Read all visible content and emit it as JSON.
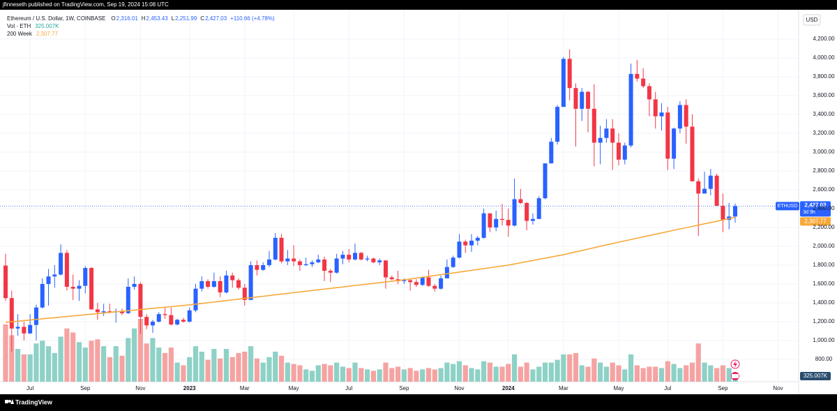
{
  "header": {
    "publisher": "jfinneseth published on TradingView.com, Sep 19, 2024 15:08 UTC",
    "brand": "TradingView"
  },
  "chart_data": {
    "type": "candlestick",
    "title": "Ethereum / U.S. Dollar, 1W, COINBASE",
    "ohlc_legend": [
      {
        "key": "O",
        "value": "2,316.01"
      },
      {
        "key": "H",
        "value": "2,453.43"
      },
      {
        "key": "L",
        "value": "2,251.99"
      },
      {
        "key": "C",
        "value": "2,427.03"
      }
    ],
    "change": "+110.66 (+4.78%)",
    "currency": "USD",
    "price_tag": {
      "symbol": "ETHUSD",
      "label": "2,427.03",
      "countdown": "3d 9h"
    },
    "up_color": "#2962ff",
    "down_color": "#f23645",
    "volume_up_color": "#8ed1c6",
    "volume_down_color": "#f5a3a2",
    "grid": true,
    "ylim": [
      444,
      4511
    ],
    "yticks": [
      {
        "value": 800,
        "label": "800.00"
      },
      {
        "value": 1000,
        "label": "1,000.00"
      },
      {
        "value": 1200,
        "label": "1,200.00"
      },
      {
        "value": 1400,
        "label": "1,400.00"
      },
      {
        "value": 1600,
        "label": "1,600.00"
      },
      {
        "value": 1800,
        "label": "1,800.00"
      },
      {
        "value": 2000,
        "label": "2,000.00"
      },
      {
        "value": 2200,
        "label": "2,200.00"
      },
      {
        "value": 2400,
        "label": "2,400.00"
      },
      {
        "value": 2600,
        "label": "2,600.00"
      },
      {
        "value": 2800,
        "label": "2,800.00"
      },
      {
        "value": 3000,
        "label": "3,000.00"
      },
      {
        "value": 3200,
        "label": "3,200.00"
      },
      {
        "value": 3400,
        "label": "3,400.00"
      },
      {
        "value": 3600,
        "label": "3,600.00"
      },
      {
        "value": 3800,
        "label": "3,800.00"
      },
      {
        "value": 4000,
        "label": "4,000.00"
      },
      {
        "value": 4200,
        "label": "4,200.00"
      }
    ],
    "categories": [
      null,
      null,
      null,
      null,
      "Jul",
      null,
      null,
      null,
      null,
      null,
      null,
      null,
      null,
      "Sep",
      null,
      null,
      null,
      null,
      null,
      null,
      null,
      null,
      "Nov",
      null,
      null,
      null,
      null,
      null,
      null,
      null,
      "2023",
      null,
      null,
      null,
      null,
      null,
      null,
      null,
      null,
      "Mar",
      null,
      null,
      null,
      null,
      null,
      null,
      null,
      "May",
      null,
      null,
      null,
      null,
      null,
      null,
      null,
      null,
      "Jul",
      null,
      null,
      null,
      null,
      null,
      null,
      null,
      null,
      "Sep",
      null,
      null,
      null,
      null,
      null,
      null,
      null,
      null,
      "Nov",
      null,
      null,
      null,
      null,
      null,
      null,
      null,
      "2024",
      null,
      null,
      null,
      null,
      null,
      null,
      null,
      null,
      "Mar",
      null,
      null,
      null,
      null,
      null,
      null,
      null,
      null,
      "May",
      null,
      null,
      null,
      null,
      null,
      null,
      null,
      "Jul",
      null,
      null,
      null,
      null,
      null,
      null,
      null,
      null,
      "Sep",
      null,
      null,
      null,
      null,
      null,
      null,
      null,
      null,
      "Nov",
      null,
      null
    ],
    "open": [
      1795,
      1450,
      1127,
      1145,
      1075,
      1165,
      1350,
      1600,
      1680,
      1700,
      1930,
      1570,
      1550,
      1580,
      1770,
      1330,
      1300,
      1310,
      1300,
      1310,
      1290,
      1570,
      1600,
      1250,
      1160,
      1200,
      1280,
      1270,
      1170,
      1220,
      1200,
      1320,
      1550,
      1630,
      1570,
      1630,
      1510,
      1690,
      1640,
      1560,
      1430,
      1800,
      1750,
      1800,
      1860,
      2090,
      1840,
      1870,
      1840,
      1800,
      1810,
      1830,
      1860,
      1740,
      1720,
      1870,
      1910,
      1860,
      1930,
      1860,
      1870,
      1830,
      1850,
      1670,
      1650,
      1630,
      1640,
      1620,
      1590,
      1670,
      1580,
      1550,
      1660,
      1780,
      1880,
      2050,
      2010,
      2060,
      2090,
      2350,
      2200,
      2290,
      2280,
      2220,
      2500,
      2460,
      2270,
      2290,
      2510,
      2880,
      3110,
      3480,
      3990,
      3680,
      3460,
      3640,
      3460,
      3100,
      3150,
      3250,
      3100,
      2920,
      3070,
      3830,
      3780,
      3700,
      3560,
      3380,
      3420,
      2930,
      3250,
      3500,
      3270,
      2690,
      2560,
      2610,
      2750,
      2430,
      2280,
      2316.01,
      null,
      null,
      null,
      null,
      null,
      null,
      null,
      null,
      null
    ],
    "high": [
      1920,
      1530,
      1280,
      1200,
      1280,
      1380,
      1660,
      1760,
      1800,
      2020,
      1960,
      1700,
      1640,
      1790,
      1780,
      1400,
      1390,
      1390,
      1340,
      1340,
      1660,
      1680,
      1620,
      1280,
      1220,
      1300,
      1350,
      1350,
      1230,
      1240,
      1350,
      1600,
      1680,
      1650,
      1720,
      1680,
      1740,
      1720,
      1660,
      1600,
      1840,
      1850,
      1830,
      1950,
      2140,
      2130,
      1960,
      2010,
      1860,
      1880,
      1850,
      1910,
      1890,
      1760,
      1920,
      1950,
      1970,
      2030,
      1940,
      1900,
      1880,
      1870,
      1850,
      1690,
      1740,
      1660,
      1660,
      1650,
      1680,
      1750,
      1600,
      1690,
      1860,
      1900,
      2130,
      2070,
      2130,
      2110,
      2400,
      2350,
      2380,
      2450,
      2400,
      2720,
      2610,
      2470,
      2350,
      2530,
      2880,
      3150,
      3500,
      4010,
      4090,
      3730,
      3680,
      3650,
      3720,
      3280,
      3350,
      3350,
      3200,
      3100,
      3940,
      3980,
      3890,
      3730,
      3640,
      3520,
      3480,
      3260,
      3540,
      3560,
      3400,
      2720,
      2790,
      2820,
      2770,
      2560,
      2460,
      2453.43,
      null,
      null,
      null,
      null,
      null,
      null,
      null,
      null,
      null
    ],
    "low": [
      1420,
      880,
      1050,
      1000,
      1070,
      1000,
      1340,
      1370,
      1560,
      1690,
      1530,
      1430,
      1420,
      1500,
      1330,
      1220,
      1260,
      1290,
      1190,
      1270,
      1280,
      1540,
      1070,
      1120,
      1080,
      1190,
      1230,
      1160,
      1160,
      1190,
      1190,
      1300,
      1520,
      1550,
      1560,
      1460,
      1500,
      1560,
      1540,
      1370,
      1430,
      1690,
      1740,
      1780,
      1850,
      1820,
      1800,
      1790,
      1740,
      1790,
      1780,
      1820,
      1630,
      1620,
      1710,
      1810,
      1830,
      1850,
      1850,
      1840,
      1820,
      1800,
      1550,
      1640,
      1600,
      1600,
      1530,
      1570,
      1580,
      1570,
      1520,
      1540,
      1660,
      1770,
      1870,
      1930,
      1940,
      2010,
      2080,
      2150,
      2160,
      2220,
      2100,
      2210,
      2450,
      2170,
      2230,
      2290,
      2500,
      2880,
      3080,
      3480,
      3550,
      3060,
      3330,
      3210,
      2850,
      2870,
      3100,
      2810,
      2860,
      2870,
      3050,
      3750,
      3680,
      3380,
      3250,
      3230,
      2810,
      2820,
      3200,
      3090,
      2690,
      2110,
      2560,
      2540,
      2430,
      2150,
      2180,
      2251.99,
      null,
      null,
      null,
      null,
      null,
      null,
      null,
      null,
      null
    ],
    "close": [
      1450,
      1127,
      1145,
      1075,
      1165,
      1350,
      1600,
      1680,
      1700,
      1930,
      1570,
      1550,
      1580,
      1770,
      1330,
      1300,
      1310,
      1300,
      1310,
      1290,
      1570,
      1600,
      1250,
      1160,
      1200,
      1280,
      1270,
      1170,
      1220,
      1200,
      1320,
      1550,
      1630,
      1570,
      1630,
      1510,
      1690,
      1640,
      1560,
      1430,
      1800,
      1750,
      1800,
      1860,
      2090,
      1840,
      1870,
      1840,
      1800,
      1810,
      1830,
      1860,
      1740,
      1720,
      1870,
      1910,
      1860,
      1930,
      1860,
      1870,
      1830,
      1850,
      1670,
      1650,
      1630,
      1640,
      1620,
      1590,
      1670,
      1580,
      1550,
      1660,
      1780,
      1880,
      2050,
      2010,
      2060,
      2090,
      2350,
      2200,
      2290,
      2280,
      2220,
      2500,
      2460,
      2270,
      2290,
      2510,
      2880,
      3110,
      3480,
      3990,
      3680,
      3460,
      3640,
      3460,
      3100,
      3150,
      3250,
      3100,
      2920,
      3070,
      3830,
      3780,
      3700,
      3560,
      3380,
      3420,
      2930,
      3250,
      3500,
      3270,
      2690,
      2560,
      2610,
      2750,
      2430,
      2280,
      2316,
      2427.03,
      null,
      null,
      null,
      null,
      null,
      null,
      null,
      null,
      null
    ],
    "volume": {
      "name": "Vol · ETH",
      "value_label": "325.007K",
      "values": [
        2100,
        1700,
        1200,
        1000,
        1000,
        1400,
        1500,
        1300,
        1050,
        1650,
        1950,
        1800,
        1450,
        1250,
        1500,
        1550,
        1300,
        900,
        1300,
        950,
        1600,
        1950,
        2300,
        1400,
        1600,
        1250,
        1050,
        1250,
        700,
        600,
        900,
        1300,
        1100,
        800,
        1200,
        850,
        1200,
        900,
        1050,
        1100,
        1300,
        850,
        700,
        900,
        1100,
        950,
        700,
        650,
        600,
        450,
        400,
        600,
        650,
        600,
        700,
        550,
        500,
        700,
        500,
        450,
        400,
        450,
        700,
        500,
        550,
        450,
        500,
        400,
        450,
        500,
        450,
        500,
        700,
        650,
        750,
        600,
        500,
        450,
        750,
        700,
        550,
        550,
        650,
        1000,
        550,
        700,
        450,
        550,
        700,
        700,
        800,
        1000,
        1000,
        1050,
        600,
        550,
        850,
        700,
        550,
        700,
        600,
        450,
        1000,
        600,
        500,
        550,
        550,
        500,
        750,
        650,
        500,
        600,
        700,
        1400,
        700,
        600,
        500,
        600,
        500,
        325.007,
        null,
        null,
        null,
        null,
        null,
        null,
        null,
        null,
        null
      ]
    },
    "ma": {
      "name": "200 Week",
      "color": "#f7a93b",
      "value_label": "2,307.77",
      "values": [
        1193,
        1199,
        1205,
        1211,
        1218,
        1224,
        1230,
        1236,
        1242,
        1248,
        1255,
        1261,
        1267,
        1273,
        1279,
        1285,
        1292,
        1298,
        1304,
        1310,
        1316,
        1322,
        1329,
        1335,
        1341,
        1347,
        1353,
        1359,
        1366,
        1372,
        1378,
        1386,
        1393,
        1401,
        1408,
        1416,
        1424,
        1431,
        1439,
        1447,
        1454,
        1462,
        1469,
        1477,
        1485,
        1492,
        1500,
        1508,
        1515,
        1523,
        1530,
        1538,
        1546,
        1553,
        1561,
        1568,
        1576,
        1584,
        1591,
        1599,
        1606,
        1614,
        1622,
        1629,
        1637,
        1644,
        1653,
        1662,
        1671,
        1680,
        1690,
        1699,
        1708,
        1717,
        1726,
        1735,
        1744,
        1754,
        1763,
        1772,
        1782,
        1791,
        1800,
        1812,
        1825,
        1837,
        1849,
        1862,
        1874,
        1886,
        1899,
        1911,
        1926,
        1941,
        1955,
        1970,
        1985,
        2000,
        2015,
        2029,
        2044,
        2058,
        2072,
        2086,
        2100,
        2114,
        2128,
        2142,
        2156,
        2170,
        2184,
        2197,
        2211,
        2225,
        2239,
        2252,
        2266,
        2280,
        2294,
        2307.77,
        null,
        null,
        null,
        null,
        null,
        null,
        null,
        null,
        null
      ]
    }
  }
}
